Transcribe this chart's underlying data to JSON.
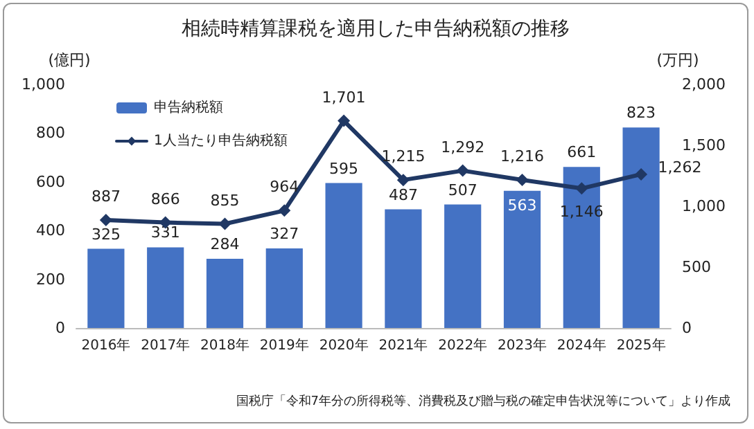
{
  "chart_data": {
    "type": "bar",
    "title": "相続時精算課税を適用した申告納税額の推移",
    "ylabel": "(億円)",
    "y2label": "(万円)",
    "categories": [
      "2016年",
      "2017年",
      "2018年",
      "2019年",
      "2020年",
      "2021年",
      "2022年",
      "2023年",
      "2024年",
      "2025年"
    ],
    "series": [
      {
        "name": "申告納税額",
        "color": "#4472c4",
        "values": [
          325,
          331,
          284,
          327,
          595,
          487,
          507,
          563,
          661,
          823
        ],
        "value_labels": [
          "325",
          "331",
          "284",
          "327",
          "595",
          "487",
          "507",
          "563",
          "661",
          "823"
        ]
      },
      {
        "name": "1人当たり申告納税額",
        "type": "line",
        "axis": "y2",
        "color": "#203864",
        "marker": "diamond",
        "values": [
          887,
          866,
          855,
          964,
          1701,
          1215,
          1292,
          1216,
          1146,
          1262
        ],
        "value_labels": [
          "887",
          "866",
          "855",
          "964",
          "1,701",
          "1,215",
          "1,292",
          "1,216",
          "1,146",
          "1,262"
        ]
      }
    ],
    "ylim": [
      0,
      1000
    ],
    "yticks": [
      0,
      200,
      400,
      600,
      800,
      {
        "value": 1000,
        "label": "1,000"
      }
    ],
    "y2lim": [
      0,
      2000
    ],
    "y2ticks": [
      0,
      500,
      {
        "value": 1000,
        "label": "1,000"
      },
      {
        "value": 1500,
        "label": "1,500"
      },
      {
        "value": 2000,
        "label": "2,000"
      }
    ],
    "grid": false,
    "legend": "top left",
    "annotations": [
      "国税庁「令和7年分の所得税等、消費税及び贈与税の確定申告状況等について」より作成"
    ]
  }
}
